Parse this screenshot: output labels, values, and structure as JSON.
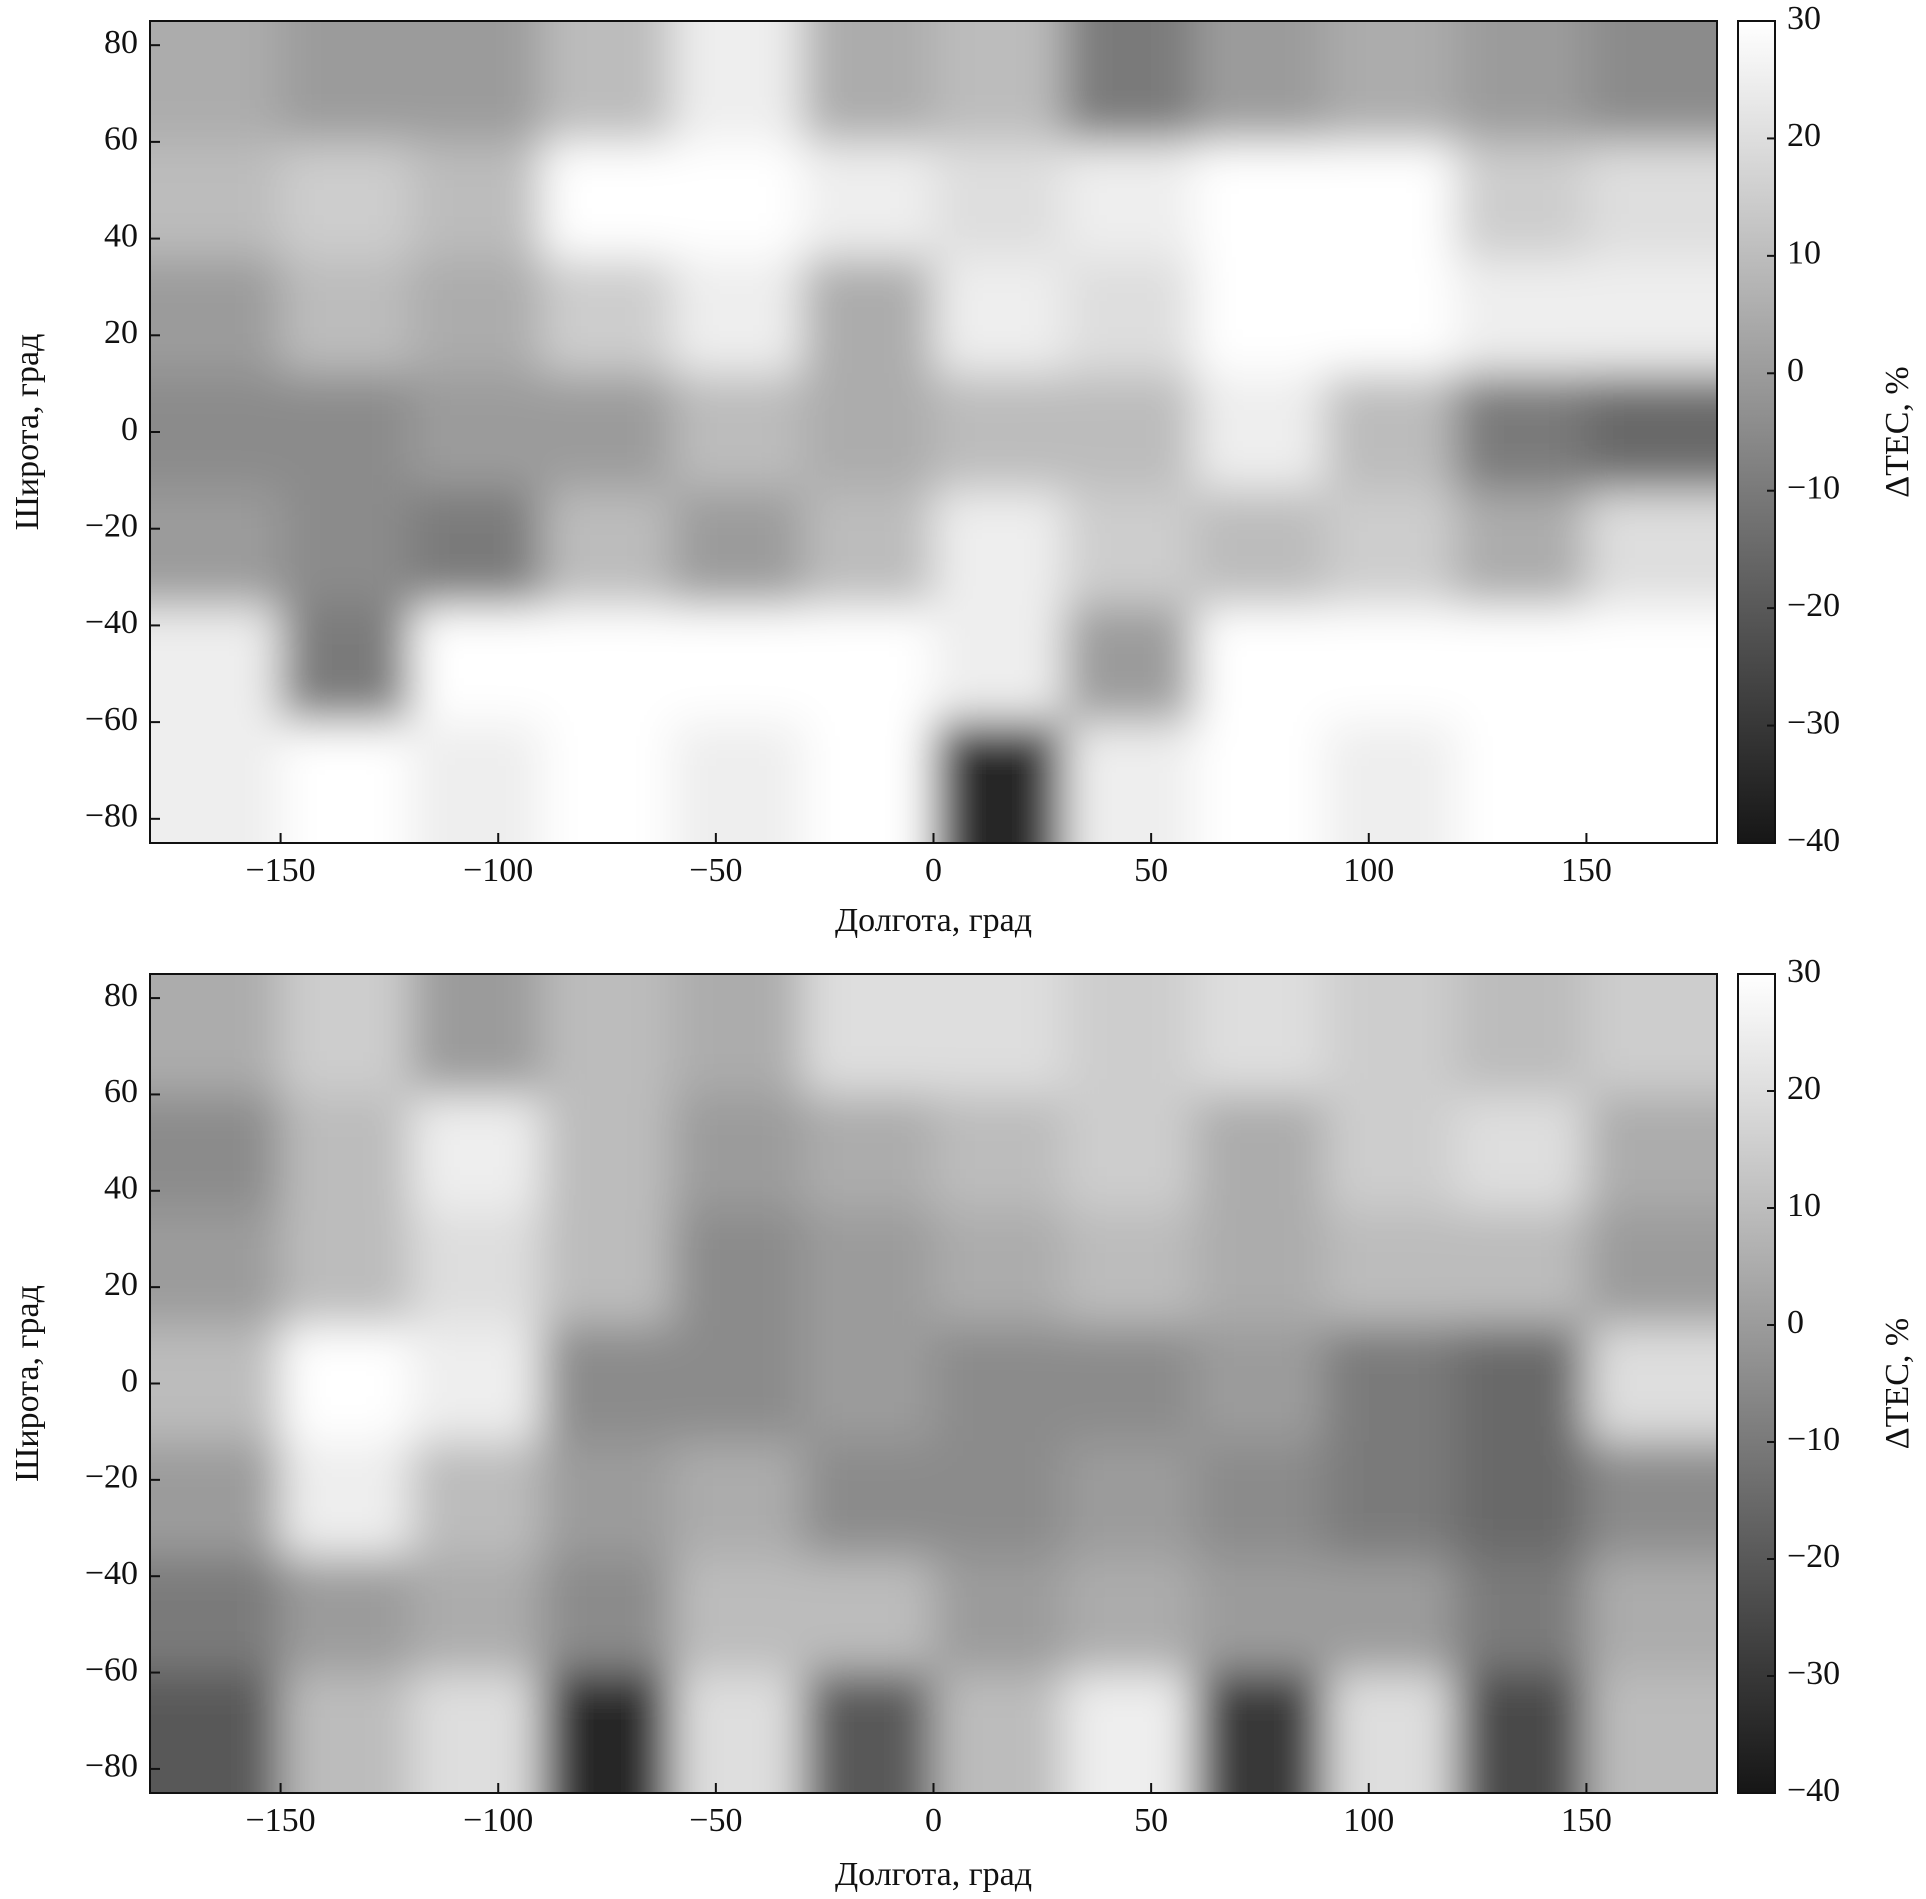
{
  "chart_data": [
    {
      "type": "heatmap",
      "xlabel": "Долгота, град",
      "ylabel": "Широта, град",
      "colorbar_label": "ΔTEC, %",
      "colormap": "gray",
      "x": [
        -165,
        -135,
        -105,
        -75,
        -45,
        -15,
        15,
        45,
        75,
        105,
        135,
        165
      ],
      "y": [
        72,
        48,
        24,
        0,
        -24,
        -48,
        -72
      ],
      "z": [
        [
          5,
          0,
          0,
          10,
          25,
          5,
          10,
          -10,
          0,
          5,
          0,
          -5
        ],
        [
          10,
          15,
          10,
          30,
          30,
          25,
          20,
          25,
          30,
          30,
          15,
          20
        ],
        [
          0,
          10,
          5,
          15,
          25,
          5,
          25,
          20,
          30,
          30,
          25,
          25
        ],
        [
          -5,
          -5,
          0,
          0,
          10,
          5,
          10,
          10,
          25,
          10,
          -10,
          -15
        ],
        [
          0,
          -5,
          -10,
          10,
          0,
          10,
          25,
          15,
          10,
          15,
          5,
          20
        ],
        [
          25,
          -10,
          30,
          30,
          30,
          30,
          25,
          0,
          30,
          30,
          30,
          30
        ],
        [
          25,
          30,
          25,
          30,
          25,
          30,
          -35,
          25,
          30,
          25,
          30,
          30
        ]
      ],
      "xlim": [
        -180,
        180
      ],
      "ylim": [
        -85,
        85
      ],
      "clim": [
        -40,
        30
      ],
      "xticks": [
        {
          "value": -150,
          "label": "−150"
        },
        {
          "value": -100,
          "label": "−100"
        },
        {
          "value": -50,
          "label": "−50"
        },
        0,
        50,
        100,
        150
      ],
      "yticks": [
        {
          "value": -80,
          "label": "−80"
        },
        {
          "value": -60,
          "label": "−60"
        },
        {
          "value": -40,
          "label": "−40"
        },
        {
          "value": -20,
          "label": "−20"
        },
        0,
        20,
        40,
        60,
        80
      ],
      "cticks": [
        {
          "value": -40,
          "label": "−40"
        },
        {
          "value": -30,
          "label": "−30"
        },
        {
          "value": -20,
          "label": "−20"
        },
        {
          "value": -10,
          "label": "−10"
        },
        0,
        10,
        20,
        30
      ]
    },
    {
      "type": "heatmap",
      "xlabel": "Долгота, град",
      "ylabel": "Широта, град",
      "colorbar_label": "ΔTEC, %",
      "colormap": "gray",
      "x": [
        -165,
        -135,
        -105,
        -75,
        -45,
        -15,
        15,
        45,
        75,
        105,
        135,
        165
      ],
      "y": [
        72,
        48,
        24,
        0,
        -24,
        -48,
        -72
      ],
      "z": [
        [
          5,
          15,
          0,
          10,
          5,
          20,
          20,
          15,
          20,
          15,
          10,
          15
        ],
        [
          -5,
          10,
          25,
          10,
          0,
          5,
          10,
          15,
          5,
          15,
          20,
          5
        ],
        [
          0,
          10,
          20,
          10,
          -5,
          0,
          5,
          10,
          5,
          10,
          10,
          0
        ],
        [
          10,
          30,
          25,
          -5,
          -5,
          0,
          -5,
          -5,
          0,
          -10,
          -15,
          20
        ],
        [
          0,
          25,
          10,
          0,
          5,
          -5,
          -5,
          0,
          -5,
          -10,
          -15,
          -5
        ],
        [
          -10,
          0,
          5,
          -5,
          10,
          10,
          0,
          5,
          0,
          0,
          -10,
          5
        ],
        [
          -20,
          10,
          20,
          -35,
          20,
          -20,
          10,
          25,
          -30,
          20,
          -25,
          10
        ]
      ],
      "xlim": [
        -180,
        180
      ],
      "ylim": [
        -85,
        85
      ],
      "clim": [
        -40,
        30
      ],
      "xticks": [
        {
          "value": -150,
          "label": "−150"
        },
        {
          "value": -100,
          "label": "−100"
        },
        {
          "value": -50,
          "label": "−50"
        },
        0,
        50,
        100,
        150
      ],
      "yticks": [
        {
          "value": -80,
          "label": "−80"
        },
        {
          "value": -60,
          "label": "−60"
        },
        {
          "value": -40,
          "label": "−40"
        },
        {
          "value": -20,
          "label": "−20"
        },
        0,
        20,
        40,
        60,
        80
      ],
      "cticks": [
        {
          "value": -40,
          "label": "−40"
        },
        {
          "value": -30,
          "label": "−30"
        },
        {
          "value": -20,
          "label": "−20"
        },
        {
          "value": -10,
          "label": "−10"
        },
        0,
        10,
        20,
        30
      ]
    }
  ]
}
